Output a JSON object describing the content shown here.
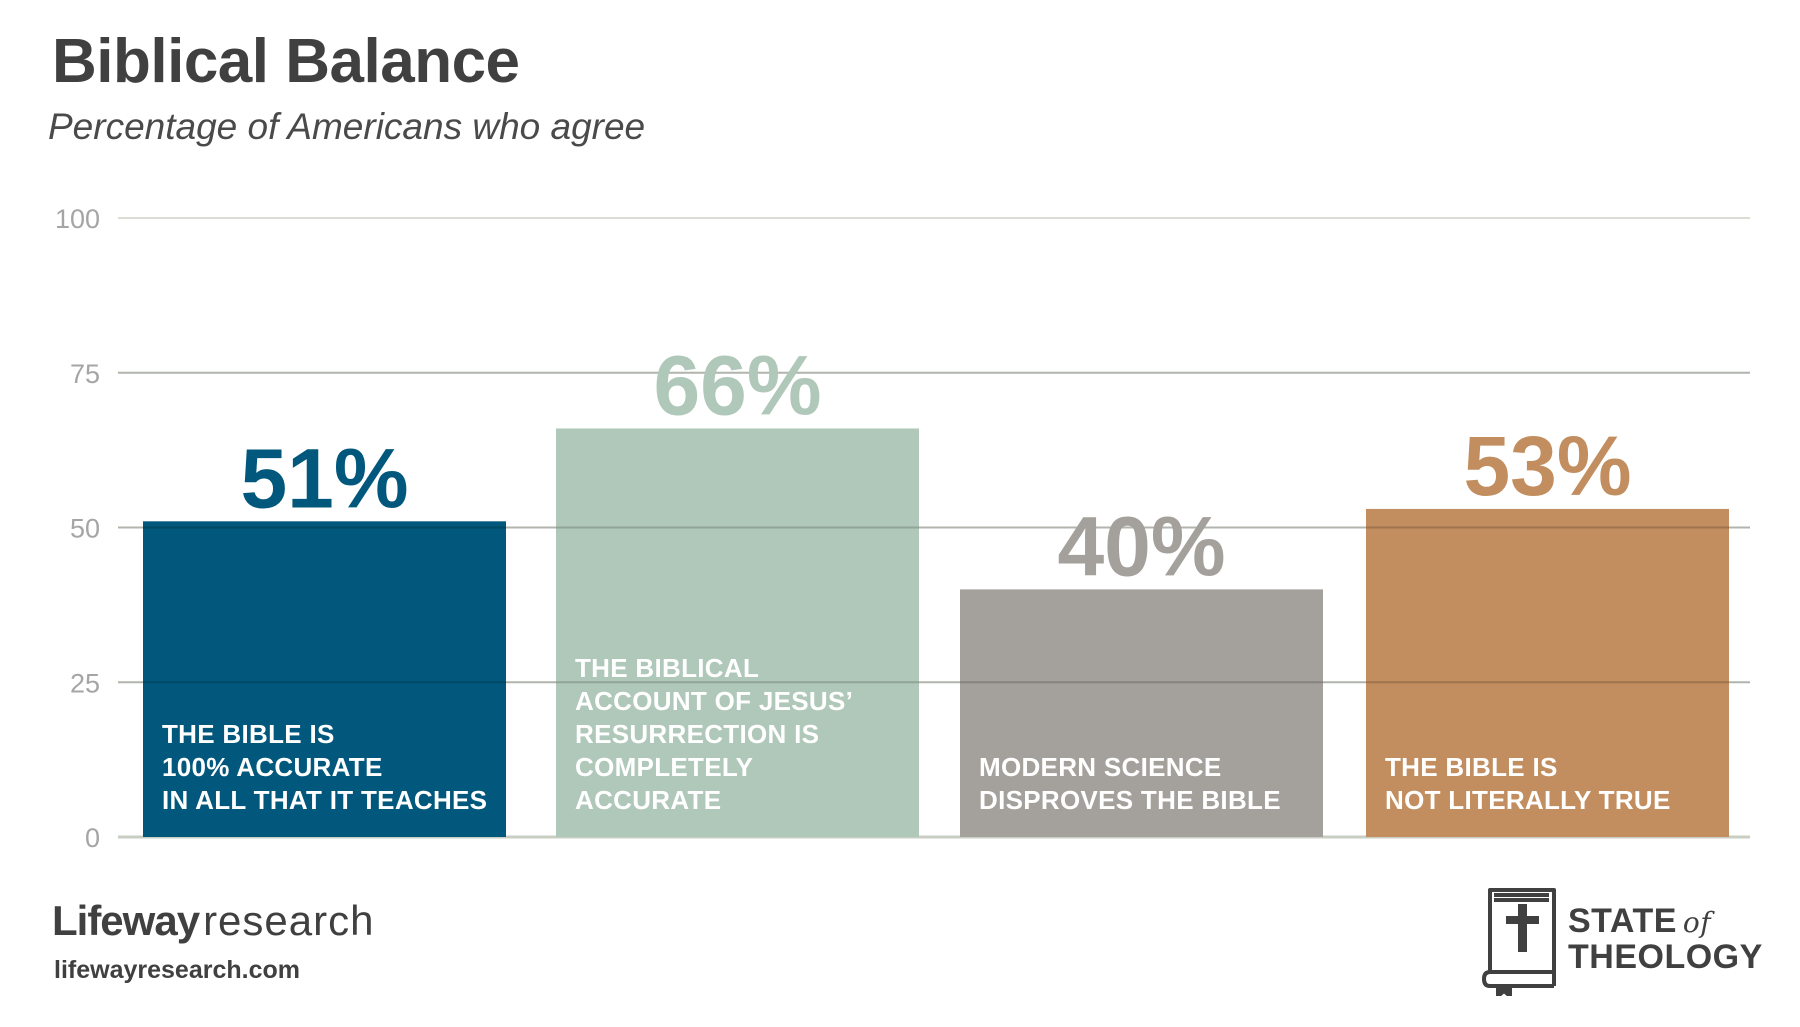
{
  "title": "Biblical Balance",
  "subtitle": "Percentage of Americans who agree",
  "chart_data": {
    "type": "bar",
    "title": "Biblical Balance",
    "subtitle": "Percentage of Americans who agree",
    "ylim": [
      0,
      100
    ],
    "yticks": [
      "0",
      "25",
      "50",
      "75",
      "100"
    ],
    "grid": true,
    "categories": [
      "THE BIBLE IS\n100% ACCURATE\nIN ALL THAT IT TEACHES",
      "THE BIBLICAL\nACCOUNT OF JESUS’\nRESURRECTION IS\nCOMPLETELY\nACCURATE",
      "MODERN SCIENCE\nDISPROVES THE BIBLE",
      "THE BIBLE IS\nNOT LITERALLY TRUE"
    ],
    "values": [
      51,
      66,
      40,
      53
    ],
    "value_labels": [
      "51%",
      "66%",
      "40%",
      "53%"
    ],
    "colors": [
      "#02587c",
      "#b0c8b9",
      "#a4a09b",
      "#c28e5f"
    ]
  },
  "footer": {
    "brand_name": "Lifeway",
    "brand_suffix": "research",
    "url": "lifewayresearch.com",
    "sot_line1": "STATE",
    "sot_of": "of",
    "sot_line2": "THEOLOGY"
  },
  "theme": {
    "grid_color": "#d9ddd3",
    "axis_color": "#c9cec3",
    "tick_color": "#a5a5a5",
    "text_dark": "#404040"
  }
}
